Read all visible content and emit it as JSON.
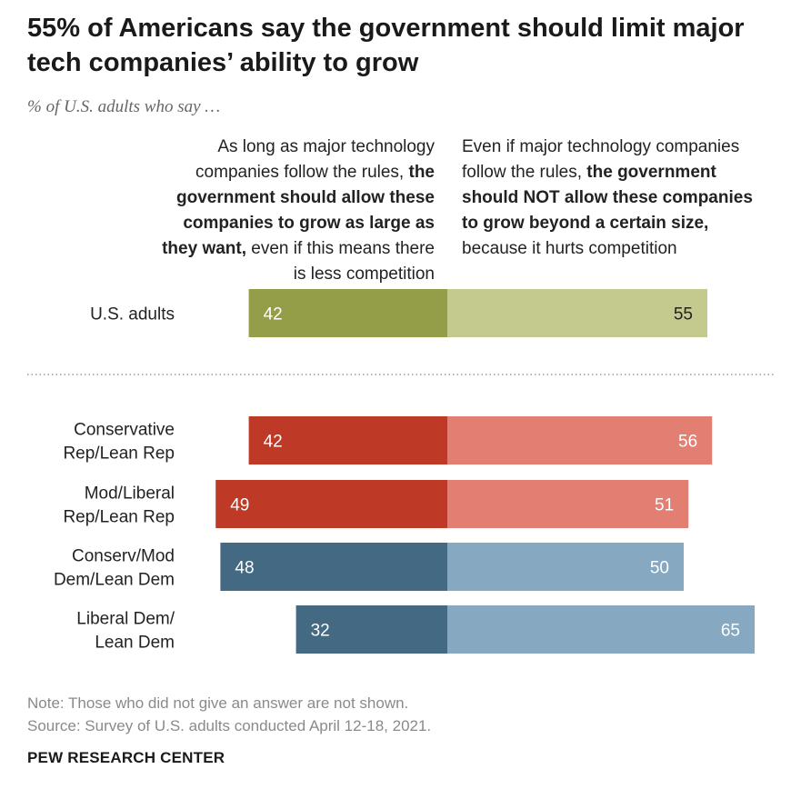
{
  "header": {
    "title": "55% of Americans say the government should limit major tech companies’ ability to grow",
    "subtitle": "% of U.S. adults who say …"
  },
  "columns": {
    "left": {
      "pre": "As long as major technology companies follow the rules, ",
      "bold": "the government should allow these companies to grow as large as they want,",
      "post": " even if this means there is less competition"
    },
    "right": {
      "pre": "Even if major technology companies follow the rules, ",
      "bold": "the government should NOT allow these companies to grow beyond a certain size,",
      "post": " because it hurts competition"
    }
  },
  "chart_data": {
    "type": "bar",
    "orientation": "diverging-horizontal",
    "categories": [
      "U.S. adults",
      "Conservative Rep/Lean Rep",
      "Mod/Liberal Rep/Lean Rep",
      "Conserv/Mod Dem/Lean Dem",
      "Liberal Dem/ Lean Dem"
    ],
    "category_lines": [
      [
        "U.S. adults"
      ],
      [
        "Conservative",
        "Rep/Lean Rep"
      ],
      [
        "Mod/Liberal",
        "Rep/Lean Rep"
      ],
      [
        "Conserv/Mod",
        "Dem/Lean Dem"
      ],
      [
        "Liberal Dem/",
        "Lean Dem"
      ]
    ],
    "series": [
      {
        "values": [
          42,
          42,
          49,
          48,
          32
        ]
      },
      {
        "values": [
          55,
          56,
          51,
          50,
          65
        ]
      }
    ],
    "colors": {
      "left": [
        "#949d48",
        "#bf3927",
        "#bf3927",
        "#436983",
        "#436983"
      ],
      "right": [
        "#c4c98e",
        "#e37e72",
        "#e37e72",
        "#86a8c0",
        "#86a8c0"
      ],
      "label_text": "#ffffff",
      "label_text_light": "#222222"
    }
  },
  "footer": {
    "note": "Note: Those who did not give an answer are not shown.",
    "source": "Source: Survey of U.S. adults conducted April 12-18, 2021.",
    "brand": "PEW RESEARCH CENTER"
  }
}
